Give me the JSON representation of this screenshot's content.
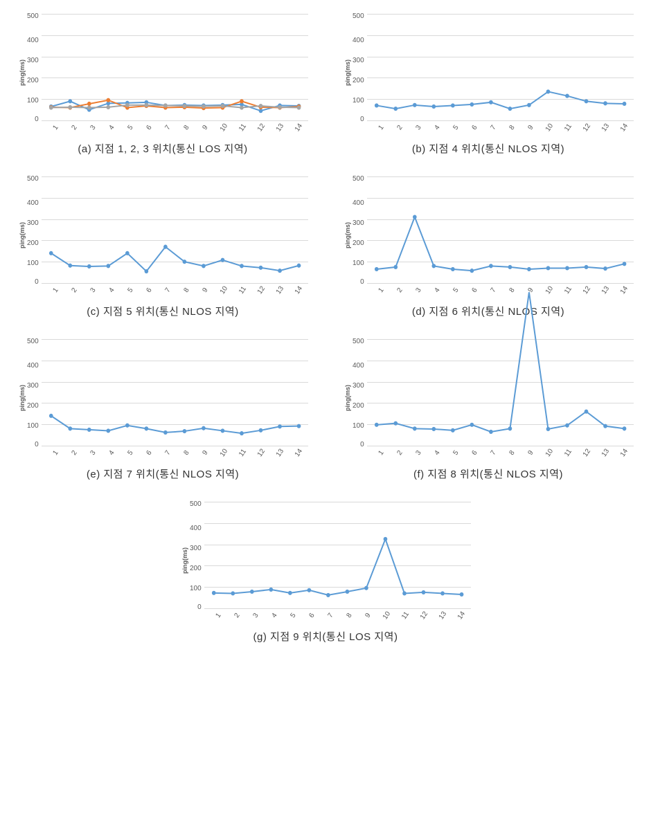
{
  "axis": {
    "ylabel": "ping(ms)",
    "ylim": [
      0,
      500
    ],
    "yticks": [
      500,
      400,
      300,
      200,
      100,
      0
    ],
    "xticks": [
      "1",
      "2",
      "3",
      "4",
      "5",
      "6",
      "7",
      "8",
      "9",
      "10",
      "11",
      "12",
      "13",
      "14"
    ],
    "grid_color": "#d9d9d9",
    "tick_color": "#595959",
    "tick_fontsize": 10,
    "ylabel_fontsize": 9
  },
  "series_style": {
    "blue": {
      "stroke": "#5b9bd5",
      "marker_fill": "#5b9bd5",
      "marker_r": 2.8,
      "stroke_width": 2
    },
    "orange": {
      "stroke": "#ed7d31",
      "marker_fill": "#ed7d31",
      "marker_r": 2.8,
      "stroke_width": 2
    },
    "gray": {
      "stroke": "#a5a5a5",
      "marker_fill": "#a5a5a5",
      "marker_r": 2.8,
      "stroke_width": 2
    }
  },
  "panels": [
    {
      "id": "a",
      "caption": "(a) 지점 1, 2, 3 위치(통신 LOS 지역)",
      "series": [
        {
          "style": "blue",
          "values": [
            65,
            90,
            50,
            80,
            82,
            85,
            70,
            72,
            70,
            72,
            75,
            45,
            70,
            68
          ]
        },
        {
          "style": "orange",
          "values": [
            62,
            60,
            78,
            95,
            60,
            68,
            60,
            62,
            58,
            60,
            90,
            62,
            60,
            65
          ]
        },
        {
          "style": "gray",
          "values": [
            60,
            62,
            60,
            62,
            72,
            72,
            70,
            68,
            66,
            68,
            60,
            68,
            62,
            60
          ]
        }
      ]
    },
    {
      "id": "b",
      "caption": "(b) 지점 4 위치(통신 NLOS 지역)",
      "series": [
        {
          "style": "blue",
          "values": [
            70,
            55,
            72,
            65,
            70,
            75,
            85,
            55,
            72,
            135,
            115,
            90,
            80,
            78
          ]
        }
      ]
    },
    {
      "id": "c",
      "caption": "(c) 지점 5 위치(통신 NLOS 지역)",
      "series": [
        {
          "style": "blue",
          "values": [
            140,
            82,
            78,
            80,
            140,
            55,
            170,
            100,
            80,
            108,
            80,
            72,
            58,
            82
          ]
        }
      ]
    },
    {
      "id": "d",
      "caption": "(d) 지점 6 위치(통신 NLOS 지역)",
      "series": [
        {
          "style": "blue",
          "values": [
            65,
            75,
            310,
            80,
            65,
            58,
            80,
            75,
            65,
            70,
            70,
            75,
            68,
            90
          ]
        }
      ]
    },
    {
      "id": "e",
      "caption": "(e) 지점 7 위치(통신 NLOS 지역)",
      "series": [
        {
          "style": "blue",
          "values": [
            140,
            80,
            75,
            70,
            95,
            80,
            62,
            68,
            82,
            70,
            58,
            72,
            90,
            92
          ]
        }
      ]
    },
    {
      "id": "f",
      "caption": "(f) 지점 8 위치(통신 NLOS 지역)",
      "series": [
        {
          "style": "blue",
          "values": [
            98,
            105,
            80,
            78,
            72,
            98,
            65,
            80,
            720,
            78,
            95,
            160,
            92,
            80
          ]
        }
      ]
    },
    {
      "id": "g",
      "caption": "(g) 지점 9 위치(통신 LOS 지역)",
      "series": [
        {
          "style": "blue",
          "values": [
            72,
            70,
            78,
            88,
            72,
            85,
            62,
            78,
            95,
            325,
            70,
            75,
            70,
            65
          ]
        }
      ]
    }
  ]
}
